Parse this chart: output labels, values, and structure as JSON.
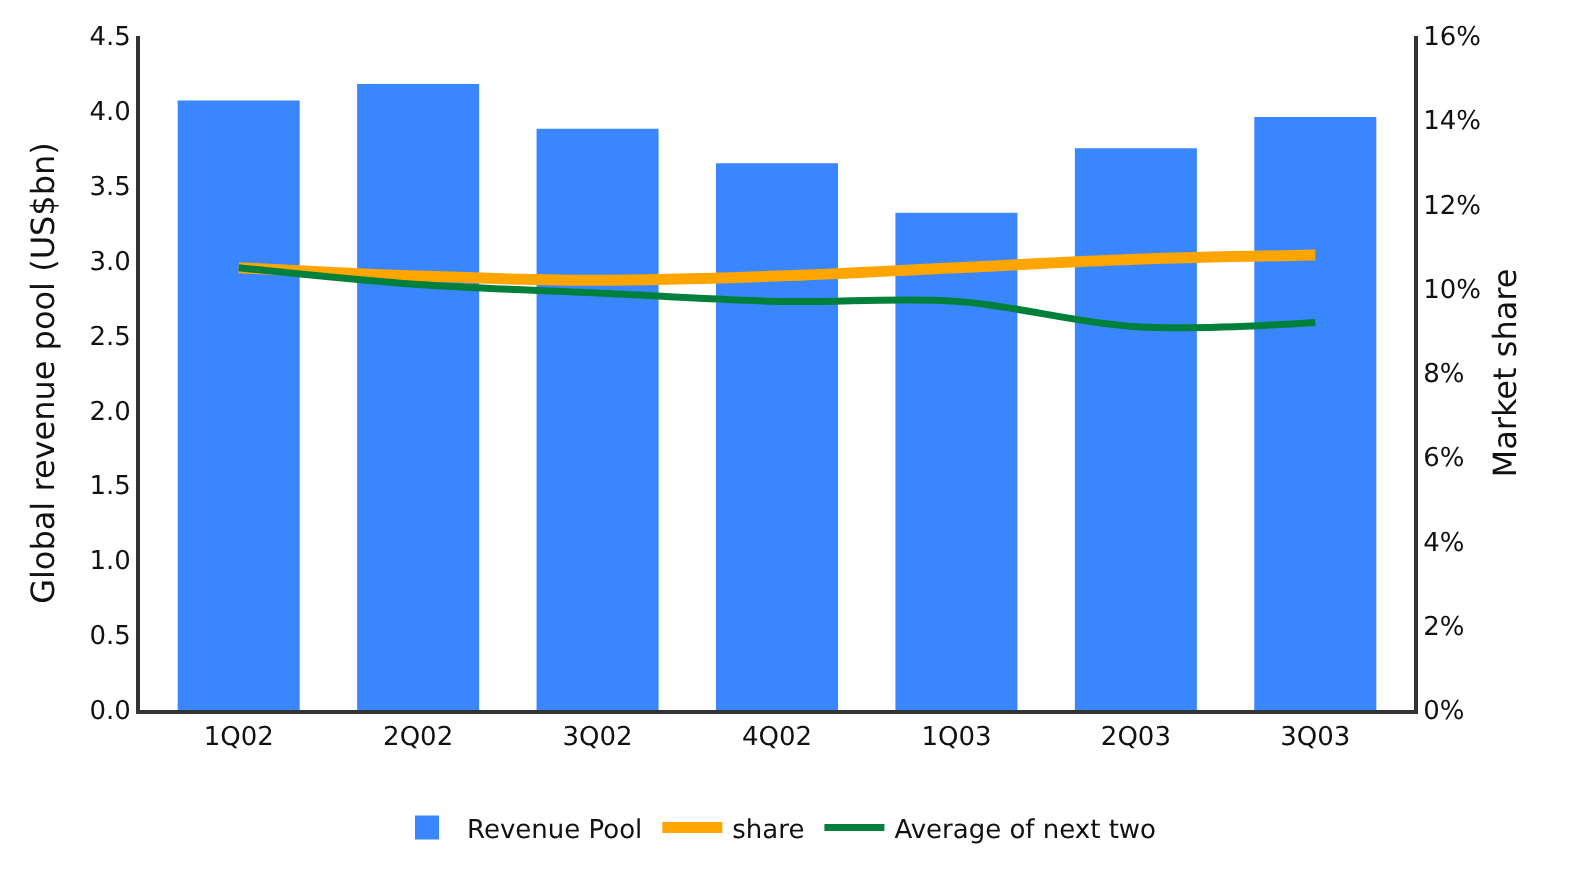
{
  "chart_data": {
    "type": "bar",
    "categories": [
      "1Q02",
      "2Q02",
      "3Q02",
      "4Q02",
      "1Q03",
      "2Q03",
      "3Q03"
    ],
    "ylabel": "Global revenue pool (US$bn)",
    "y2label": "Market share",
    "ylim": [
      0,
      4.5
    ],
    "yticks": [
      {
        "value": 0,
        "label": "0.0"
      },
      {
        "value": 0.5,
        "label": "0.5"
      },
      {
        "value": 1,
        "label": "1.0"
      },
      {
        "value": 1.5,
        "label": "1.5"
      },
      {
        "value": 2,
        "label": "2.0"
      },
      {
        "value": 2.5,
        "label": "2.5"
      },
      {
        "value": 3,
        "label": "3.0"
      },
      {
        "value": 3.5,
        "label": "3.5"
      },
      {
        "value": 4,
        "label": "4.0"
      },
      {
        "value": 4.5,
        "label": "4.5"
      }
    ],
    "y2lim": [
      0,
      16
    ],
    "y2ticks": [
      {
        "value": 0,
        "label": "0%"
      },
      {
        "value": 2,
        "label": "2%"
      },
      {
        "value": 4,
        "label": "4%"
      },
      {
        "value": 6,
        "label": "6%"
      },
      {
        "value": 8,
        "label": "8%"
      },
      {
        "value": 10,
        "label": "10%"
      },
      {
        "value": 12,
        "label": "12%"
      },
      {
        "value": 14,
        "label": "14%"
      },
      {
        "value": 16,
        "label": "16%"
      }
    ],
    "grid": false,
    "legend": "bottom",
    "series": [
      {
        "name": "Revenue Pool",
        "color": "#3a86ff",
        "values": [
          4.07,
          4.18,
          3.88,
          3.65,
          3.32,
          3.75,
          3.96
        ]
      },
      {
        "name": "share",
        "type": "line",
        "axis": "y2",
        "color": "#ffa500",
        "values": [
          10.5,
          10.3,
          10.2,
          10.3,
          10.5,
          10.7,
          10.8
        ]
      },
      {
        "name": "Average of next two",
        "type": "line",
        "axis": "y2",
        "color": "#00803a",
        "values": [
          10.5,
          10.1,
          9.9,
          9.7,
          9.7,
          9.1,
          9.2
        ]
      }
    ]
  }
}
